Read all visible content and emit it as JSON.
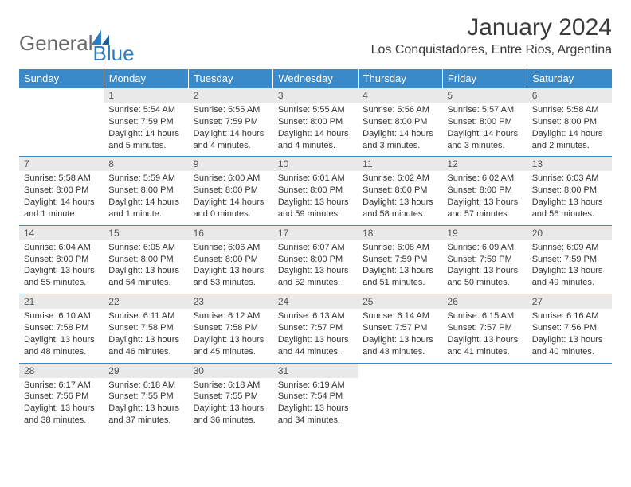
{
  "brand": {
    "word1": "General",
    "word2": "Blue"
  },
  "title": "January 2024",
  "location": "Los Conquistadores, Entre Rios, Argentina",
  "colors": {
    "header_bg": "#3a89c9",
    "header_fg": "#ffffff",
    "daynum_bg": "#e9e9e9",
    "row_border": "#3a89c9",
    "logo_gray": "#6a6a6a",
    "logo_blue": "#2f7bbf",
    "text": "#333333"
  },
  "weekdays": [
    "Sunday",
    "Monday",
    "Tuesday",
    "Wednesday",
    "Thursday",
    "Friday",
    "Saturday"
  ],
  "weeks": [
    [
      {
        "empty": true
      },
      {
        "n": "1",
        "sr": "Sunrise: 5:54 AM",
        "ss": "Sunset: 7:59 PM",
        "d1": "Daylight: 14 hours",
        "d2": "and 5 minutes."
      },
      {
        "n": "2",
        "sr": "Sunrise: 5:55 AM",
        "ss": "Sunset: 7:59 PM",
        "d1": "Daylight: 14 hours",
        "d2": "and 4 minutes."
      },
      {
        "n": "3",
        "sr": "Sunrise: 5:55 AM",
        "ss": "Sunset: 8:00 PM",
        "d1": "Daylight: 14 hours",
        "d2": "and 4 minutes."
      },
      {
        "n": "4",
        "sr": "Sunrise: 5:56 AM",
        "ss": "Sunset: 8:00 PM",
        "d1": "Daylight: 14 hours",
        "d2": "and 3 minutes."
      },
      {
        "n": "5",
        "sr": "Sunrise: 5:57 AM",
        "ss": "Sunset: 8:00 PM",
        "d1": "Daylight: 14 hours",
        "d2": "and 3 minutes."
      },
      {
        "n": "6",
        "sr": "Sunrise: 5:58 AM",
        "ss": "Sunset: 8:00 PM",
        "d1": "Daylight: 14 hours",
        "d2": "and 2 minutes."
      }
    ],
    [
      {
        "n": "7",
        "sr": "Sunrise: 5:58 AM",
        "ss": "Sunset: 8:00 PM",
        "d1": "Daylight: 14 hours",
        "d2": "and 1 minute."
      },
      {
        "n": "8",
        "sr": "Sunrise: 5:59 AM",
        "ss": "Sunset: 8:00 PM",
        "d1": "Daylight: 14 hours",
        "d2": "and 1 minute."
      },
      {
        "n": "9",
        "sr": "Sunrise: 6:00 AM",
        "ss": "Sunset: 8:00 PM",
        "d1": "Daylight: 14 hours",
        "d2": "and 0 minutes."
      },
      {
        "n": "10",
        "sr": "Sunrise: 6:01 AM",
        "ss": "Sunset: 8:00 PM",
        "d1": "Daylight: 13 hours",
        "d2": "and 59 minutes."
      },
      {
        "n": "11",
        "sr": "Sunrise: 6:02 AM",
        "ss": "Sunset: 8:00 PM",
        "d1": "Daylight: 13 hours",
        "d2": "and 58 minutes."
      },
      {
        "n": "12",
        "sr": "Sunrise: 6:02 AM",
        "ss": "Sunset: 8:00 PM",
        "d1": "Daylight: 13 hours",
        "d2": "and 57 minutes."
      },
      {
        "n": "13",
        "sr": "Sunrise: 6:03 AM",
        "ss": "Sunset: 8:00 PM",
        "d1": "Daylight: 13 hours",
        "d2": "and 56 minutes."
      }
    ],
    [
      {
        "n": "14",
        "sr": "Sunrise: 6:04 AM",
        "ss": "Sunset: 8:00 PM",
        "d1": "Daylight: 13 hours",
        "d2": "and 55 minutes."
      },
      {
        "n": "15",
        "sr": "Sunrise: 6:05 AM",
        "ss": "Sunset: 8:00 PM",
        "d1": "Daylight: 13 hours",
        "d2": "and 54 minutes."
      },
      {
        "n": "16",
        "sr": "Sunrise: 6:06 AM",
        "ss": "Sunset: 8:00 PM",
        "d1": "Daylight: 13 hours",
        "d2": "and 53 minutes."
      },
      {
        "n": "17",
        "sr": "Sunrise: 6:07 AM",
        "ss": "Sunset: 8:00 PM",
        "d1": "Daylight: 13 hours",
        "d2": "and 52 minutes."
      },
      {
        "n": "18",
        "sr": "Sunrise: 6:08 AM",
        "ss": "Sunset: 7:59 PM",
        "d1": "Daylight: 13 hours",
        "d2": "and 51 minutes."
      },
      {
        "n": "19",
        "sr": "Sunrise: 6:09 AM",
        "ss": "Sunset: 7:59 PM",
        "d1": "Daylight: 13 hours",
        "d2": "and 50 minutes."
      },
      {
        "n": "20",
        "sr": "Sunrise: 6:09 AM",
        "ss": "Sunset: 7:59 PM",
        "d1": "Daylight: 13 hours",
        "d2": "and 49 minutes."
      }
    ],
    [
      {
        "n": "21",
        "sr": "Sunrise: 6:10 AM",
        "ss": "Sunset: 7:58 PM",
        "d1": "Daylight: 13 hours",
        "d2": "and 48 minutes."
      },
      {
        "n": "22",
        "sr": "Sunrise: 6:11 AM",
        "ss": "Sunset: 7:58 PM",
        "d1": "Daylight: 13 hours",
        "d2": "and 46 minutes."
      },
      {
        "n": "23",
        "sr": "Sunrise: 6:12 AM",
        "ss": "Sunset: 7:58 PM",
        "d1": "Daylight: 13 hours",
        "d2": "and 45 minutes."
      },
      {
        "n": "24",
        "sr": "Sunrise: 6:13 AM",
        "ss": "Sunset: 7:57 PM",
        "d1": "Daylight: 13 hours",
        "d2": "and 44 minutes."
      },
      {
        "n": "25",
        "sr": "Sunrise: 6:14 AM",
        "ss": "Sunset: 7:57 PM",
        "d1": "Daylight: 13 hours",
        "d2": "and 43 minutes."
      },
      {
        "n": "26",
        "sr": "Sunrise: 6:15 AM",
        "ss": "Sunset: 7:57 PM",
        "d1": "Daylight: 13 hours",
        "d2": "and 41 minutes."
      },
      {
        "n": "27",
        "sr": "Sunrise: 6:16 AM",
        "ss": "Sunset: 7:56 PM",
        "d1": "Daylight: 13 hours",
        "d2": "and 40 minutes."
      }
    ],
    [
      {
        "n": "28",
        "sr": "Sunrise: 6:17 AM",
        "ss": "Sunset: 7:56 PM",
        "d1": "Daylight: 13 hours",
        "d2": "and 38 minutes."
      },
      {
        "n": "29",
        "sr": "Sunrise: 6:18 AM",
        "ss": "Sunset: 7:55 PM",
        "d1": "Daylight: 13 hours",
        "d2": "and 37 minutes."
      },
      {
        "n": "30",
        "sr": "Sunrise: 6:18 AM",
        "ss": "Sunset: 7:55 PM",
        "d1": "Daylight: 13 hours",
        "d2": "and 36 minutes."
      },
      {
        "n": "31",
        "sr": "Sunrise: 6:19 AM",
        "ss": "Sunset: 7:54 PM",
        "d1": "Daylight: 13 hours",
        "d2": "and 34 minutes."
      },
      {
        "empty": true
      },
      {
        "empty": true
      },
      {
        "empty": true
      }
    ]
  ]
}
